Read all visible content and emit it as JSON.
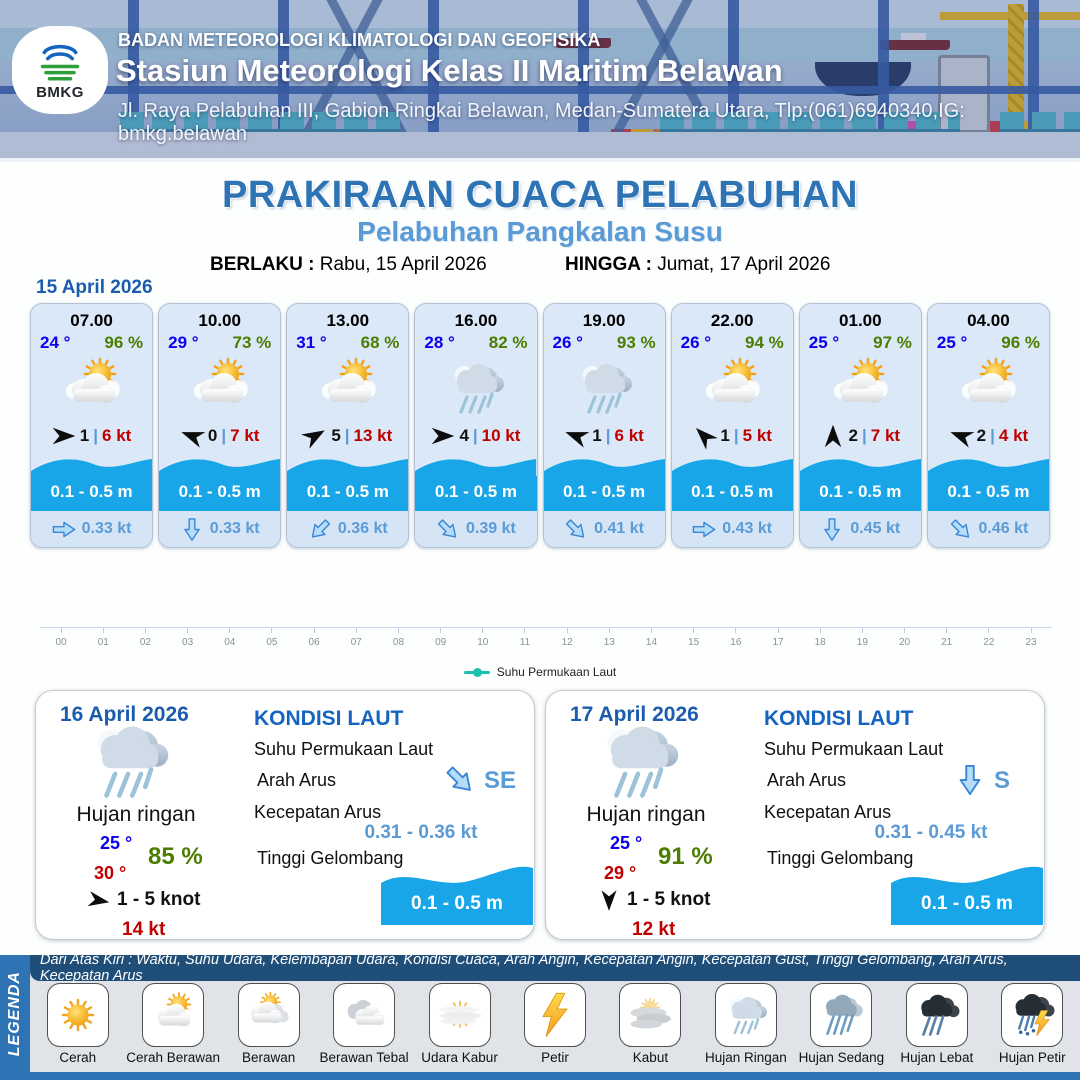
{
  "header": {
    "agency": "BADAN METEOROLOGI KLIMATOLOGI DAN GEOFISIKA",
    "station": "Stasiun Meteorologi Kelas II Maritim Belawan",
    "address": "Jl. Raya Pelabuhan III, Gabion Ringkai Belawan, Medan-Sumatera Utara, Tlp:(061)6940340,IG: bmkg.belawan",
    "logo_text": "BMKG"
  },
  "title": {
    "main": "PRAKIRAAN CUACA PELABUHAN",
    "sub": "Pelabuhan Pangkalan Susu"
  },
  "validity": {
    "berlaku_label": "BERLAKU :",
    "berlaku_value": "Rabu, 15 April 2026",
    "hingga_label": "HINGGA :",
    "hingga_value": "Jumat, 17 April 2026"
  },
  "forecast_date": "15 April 2026",
  "labels": {
    "wind_sep": "|"
  },
  "cards": [
    {
      "time": "07.00",
      "temp": "24 °",
      "humidity": "96 %",
      "icon": "cerah-berawan",
      "wind_speed": "1",
      "gust": "6 kt",
      "wave": "0.1 - 0.5 m",
      "current": "0.33 kt",
      "wind_deg": 0,
      "current_deg": 0
    },
    {
      "time": "10.00",
      "temp": "29 °",
      "humidity": "73 %",
      "icon": "cerah-berawan",
      "wind_speed": "0",
      "gust": "7 kt",
      "wave": "0.1 - 0.5 m",
      "current": "0.33 kt",
      "wind_deg": 200,
      "current_deg": 90
    },
    {
      "time": "13.00",
      "temp": "31 °",
      "humidity": "68 %",
      "icon": "cerah-berawan",
      "wind_speed": "5",
      "gust": "13 kt",
      "wave": "0.1 - 0.5 m",
      "current": "0.36 kt",
      "wind_deg": -30,
      "current_deg": 135
    },
    {
      "time": "16.00",
      "temp": "28 °",
      "humidity": "82 %",
      "icon": "hujan-ringan",
      "wind_speed": "4",
      "gust": "10 kt",
      "wave": "0.1 - 0.5 m",
      "current": "0.39 kt",
      "wind_deg": 0,
      "current_deg": 45
    },
    {
      "time": "19.00",
      "temp": "26 °",
      "humidity": "93 %",
      "icon": "hujan-ringan",
      "wind_speed": "1",
      "gust": "6 kt",
      "wave": "0.1 - 0.5 m",
      "current": "0.41 kt",
      "wind_deg": 200,
      "current_deg": 45
    },
    {
      "time": "22.00",
      "temp": "26 °",
      "humidity": "94 %",
      "icon": "cerah-berawan",
      "wind_speed": "1",
      "gust": "5 kt",
      "wave": "0.1 - 0.5 m",
      "current": "0.43 kt",
      "wind_deg": -135,
      "current_deg": 0
    },
    {
      "time": "01.00",
      "temp": "25 °",
      "humidity": "97 %",
      "icon": "cerah-berawan",
      "wind_speed": "2",
      "gust": "7 kt",
      "wave": "0.1 - 0.5 m",
      "current": "0.45 kt",
      "wind_deg": -90,
      "current_deg": 90
    },
    {
      "time": "04.00",
      "temp": "25 °",
      "humidity": "96 %",
      "icon": "cerah-berawan",
      "wind_speed": "2",
      "gust": "4 kt",
      "wave": "0.1 - 0.5 m",
      "current": "0.46 kt",
      "wind_deg": 200,
      "current_deg": 45
    }
  ],
  "chart": {
    "hours": [
      "00",
      "01",
      "02",
      "03",
      "04",
      "05",
      "06",
      "07",
      "08",
      "09",
      "10",
      "11",
      "12",
      "13",
      "14",
      "15",
      "16",
      "17",
      "18",
      "19",
      "20",
      "21",
      "22",
      "23"
    ],
    "series_legend": "Suhu Permukaan Laut"
  },
  "day_panels": [
    {
      "date": "16 April 2026",
      "icon": "hujan-ringan",
      "condition": "Hujan ringan",
      "temp_min": "25 °",
      "temp_max": "30 °",
      "humidity": "85 %",
      "wind_range": "1 - 5 knot",
      "gust": "14 kt",
      "wind_deg": 10,
      "sea": {
        "title": "KONDISI LAUT",
        "sst_label": "Suhu Permukaan Laut",
        "current_dir_label": "Arah Arus",
        "current_dir_value": "SE",
        "current_dir_deg": 45,
        "current_speed_label": "Kecepatan Arus",
        "current_speed_value": "0.31 - 0.36 kt",
        "wave_label": "Tinggi Gelombang",
        "wave_value": "0.1 - 0.5 m"
      }
    },
    {
      "date": "17 April 2026",
      "icon": "hujan-ringan",
      "condition": "Hujan ringan",
      "temp_min": "25 °",
      "temp_max": "29 °",
      "humidity": "91 %",
      "wind_range": "1 - 5 knot",
      "gust": "12 kt",
      "wind_deg": 90,
      "sea": {
        "title": "KONDISI LAUT",
        "sst_label": "Suhu Permukaan Laut",
        "current_dir_label": "Arah Arus",
        "current_dir_value": "S",
        "current_dir_deg": 90,
        "current_speed_label": "Kecepatan Arus",
        "current_speed_value": "0.31 - 0.45 kt",
        "wave_label": "Tinggi Gelombang",
        "wave_value": "0.1 - 0.5 m"
      }
    }
  ],
  "legend": {
    "sidebar": "LEGENDA",
    "note": "Dari Atas Kiri : Waktu, Suhu Udara, Kelembapan Udara, Kondisi Cuaca, Arah Angin, Kecepatan Angin, Kecepatan Gust, Tinggi Gelombang, Arah Arus, Kecepatan Arus",
    "items": [
      {
        "label": "Cerah",
        "icon": "cerah"
      },
      {
        "label": "Cerah Berawan",
        "icon": "cerah-berawan"
      },
      {
        "label": "Berawan",
        "icon": "berawan"
      },
      {
        "label": "Berawan Tebal",
        "icon": "berawan-tebal"
      },
      {
        "label": "Udara Kabur",
        "icon": "udara-kabur"
      },
      {
        "label": "Petir",
        "icon": "petir"
      },
      {
        "label": "Kabut",
        "icon": "kabut"
      },
      {
        "label": "Hujan Ringan",
        "icon": "hujan-ringan"
      },
      {
        "label": "Hujan Sedang",
        "icon": "hujan-sedang"
      },
      {
        "label": "Hujan Lebat",
        "icon": "hujan-lebat"
      },
      {
        "label": "Hujan Petir",
        "icon": "hujan-petir"
      }
    ]
  },
  "colors": {
    "accent_blue": "#2e74b5",
    "subtitle_blue": "#5b9bd5",
    "temp_blue": "#0a00ee",
    "humidity_green": "#4a7d00",
    "gust_red": "#c00000",
    "wave_blue": "#18a6e8",
    "legend_teal": "#19c2ae",
    "navy_bar": "#1f4e79"
  }
}
